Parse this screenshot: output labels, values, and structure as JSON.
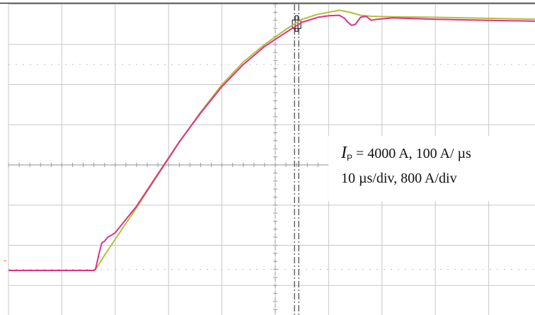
{
  "chart_data": {
    "type": "line",
    "title": "",
    "xlabel": "",
    "ylabel": "",
    "grid": true,
    "divisions": {
      "x": 10,
      "y": 8
    },
    "x_units_per_div": 10,
    "x_unit": "µs",
    "y_units_per_div": 800,
    "y_unit": "A",
    "xlim": [
      0,
      100
    ],
    "ylim": [
      0,
      6400
    ],
    "cursor_x": 54,
    "series": [
      {
        "color": "#b5be3a",
        "x": [
          0,
          8,
          16,
          16.3,
          18,
          20,
          24,
          28,
          32,
          36,
          40,
          44,
          48,
          52,
          55,
          58,
          62,
          64,
          66,
          68,
          72,
          80,
          90,
          100
        ],
        "y": [
          1100,
          1100,
          1100,
          1115,
          1400,
          1720,
          2350,
          3000,
          3650,
          4250,
          4800,
          5250,
          5600,
          5900,
          6100,
          6200,
          6280,
          6240,
          6180,
          6160,
          6150,
          6140,
          6120,
          6100
        ]
      },
      {
        "color": "#e0308a",
        "x": [
          0,
          8,
          16,
          16.3,
          17,
          17.5,
          18,
          18.6,
          19.3,
          20,
          24,
          28,
          32,
          36,
          40,
          44,
          48,
          52,
          55,
          58,
          60,
          62,
          63,
          63.6,
          64.3,
          65,
          66,
          67,
          68,
          69,
          70,
          72,
          80,
          90,
          100
        ],
        "y": [
          1100,
          1100,
          1100,
          1120,
          1450,
          1650,
          1680,
          1760,
          1800,
          1850,
          2380,
          3020,
          3660,
          4230,
          4760,
          5200,
          5560,
          5840,
          6040,
          6140,
          6170,
          6180,
          6120,
          6040,
          5980,
          6000,
          6140,
          6160,
          6080,
          6100,
          6110,
          6130,
          6100,
          6080,
          6060
        ]
      }
    ],
    "annotations": [
      {
        "symbol": "I",
        "subscript": "P",
        "text": " = 4000 A, 100 A/ µs"
      },
      {
        "text": "10 µs/div, 800 A/div"
      }
    ],
    "ground_marker": "-"
  }
}
